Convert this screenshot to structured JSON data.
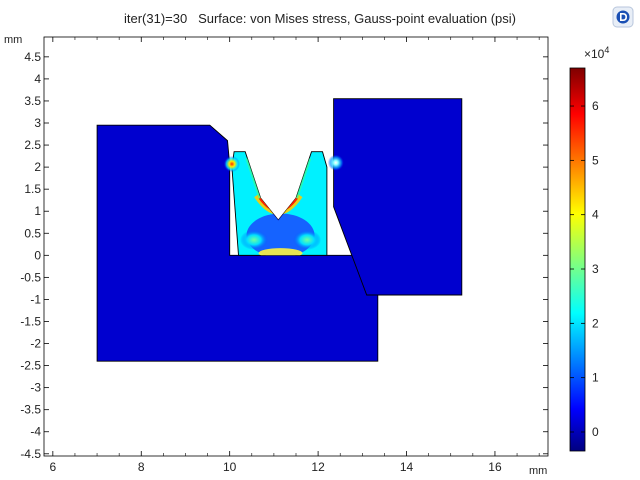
{
  "chart_data": {
    "type": "heatmap",
    "title": "iter(31)=30   Surface: von Mises stress, Gauss-point evaluation (psi)",
    "x_unit": "mm",
    "y_unit": "mm",
    "xlim": [
      5.8,
      17.2
    ],
    "ylim": [
      -4.55,
      4.95
    ],
    "x_ticks": [
      6,
      8,
      10,
      12,
      14,
      16
    ],
    "y_ticks": [
      4.5,
      4,
      3.5,
      3,
      2.5,
      2,
      1.5,
      1,
      0.5,
      0,
      -0.5,
      -1,
      -1.5,
      -2,
      -2.5,
      -3,
      -3.5,
      -4,
      -4.5
    ],
    "x_tick_labels": [
      "6",
      "8",
      "10",
      "12",
      "14",
      "16"
    ],
    "y_tick_labels": [
      "4.5",
      "4",
      "3.5",
      "3",
      "2.5",
      "2",
      "1.5",
      "1",
      "0.5",
      "0",
      "-0.5",
      "-1",
      "-1.5",
      "-2",
      "-2.5",
      "-3",
      "-3.5",
      "-4",
      "-4.5"
    ],
    "colorbar": {
      "multiplier": "×10",
      "exponent": "4",
      "range": [
        -0.35,
        6.7
      ],
      "ticks": [
        0,
        1,
        2,
        3,
        4,
        5,
        6
      ],
      "tick_labels": [
        "0",
        "1",
        "2",
        "3",
        "4",
        "5",
        "6"
      ]
    },
    "regions": [
      {
        "name": "left-block",
        "value": 0.2,
        "points": [
          [
            7,
            2.95
          ],
          [
            9.55,
            2.95
          ],
          [
            9.95,
            2.6
          ],
          [
            10.0,
            2.05
          ],
          [
            10.0,
            0
          ],
          [
            13.35,
            0
          ],
          [
            13.35,
            -2.4
          ],
          [
            7,
            -2.4
          ]
        ]
      },
      {
        "name": "right-block",
        "value": 0.2,
        "points": [
          [
            12.35,
            3.55
          ],
          [
            15.25,
            3.55
          ],
          [
            15.25,
            -0.9
          ],
          [
            13.1,
            -0.9
          ],
          [
            12.35,
            1.1
          ]
        ]
      },
      {
        "name": "seal",
        "value": 2.2,
        "points": [
          [
            10.05,
            2.0
          ],
          [
            10.1,
            2.35
          ],
          [
            10.35,
            2.35
          ],
          [
            10.7,
            1.3
          ],
          [
            11.1,
            0.8
          ],
          [
            11.5,
            1.3
          ],
          [
            11.85,
            2.35
          ],
          [
            12.1,
            2.35
          ],
          [
            12.2,
            2.0
          ],
          [
            12.2,
            0
          ],
          [
            10.2,
            0
          ]
        ]
      }
    ]
  },
  "icons": {
    "logo": "comsol-logo-icon"
  },
  "colors": {
    "jet_dark": "#00007f",
    "jet_blue": "#0000ff",
    "jet_cyan": "#00ffff",
    "jet_yellow": "#ffff00",
    "jet_red": "#ff0000",
    "jet_darkred": "#7f0000"
  }
}
